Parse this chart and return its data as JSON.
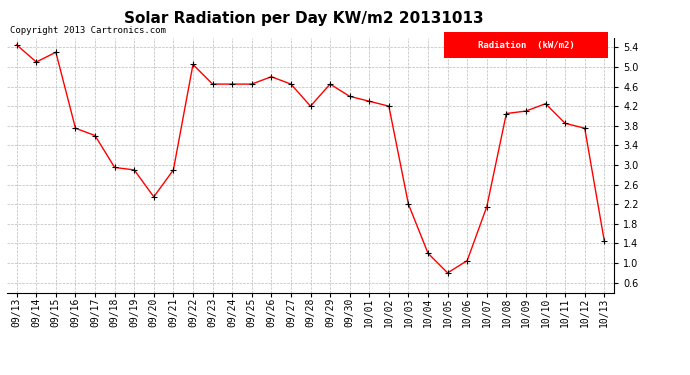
{
  "title": "Solar Radiation per Day KW/m2 20131013",
  "copyright_text": "Copyright 2013 Cartronics.com",
  "legend_label": "Radiation  (kW/m2)",
  "labels": [
    "09/13",
    "09/14",
    "09/15",
    "09/16",
    "09/17",
    "09/18",
    "09/19",
    "09/20",
    "09/21",
    "09/22",
    "09/23",
    "09/24",
    "09/25",
    "09/26",
    "09/27",
    "09/28",
    "09/29",
    "09/30",
    "10/01",
    "10/02",
    "10/03",
    "10/04",
    "10/05",
    "10/06",
    "10/07",
    "10/08",
    "10/09",
    "10/10",
    "10/11",
    "10/12",
    "10/13"
  ],
  "values": [
    5.45,
    5.1,
    5.3,
    3.75,
    3.6,
    2.95,
    2.9,
    2.35,
    2.9,
    5.05,
    4.65,
    4.65,
    4.65,
    4.8,
    4.65,
    4.2,
    4.65,
    4.4,
    4.3,
    4.2,
    2.2,
    1.2,
    0.8,
    1.05,
    2.15,
    4.05,
    4.1,
    4.25,
    3.85,
    3.75,
    1.45
  ],
  "line_color": "#ff0000",
  "marker_color": "#000000",
  "bg_color": "#ffffff",
  "grid_color": "#bbbbbb",
  "ylim": [
    0.4,
    5.6
  ],
  "yticks": [
    0.6,
    1.0,
    1.4,
    1.8,
    2.2,
    2.6,
    3.0,
    3.4,
    3.8,
    4.2,
    4.6,
    5.0,
    5.4
  ],
  "legend_bg": "#ff0000",
  "legend_fg": "#ffffff",
  "title_fontsize": 11,
  "tick_fontsize": 7,
  "copyright_fontsize": 6.5
}
